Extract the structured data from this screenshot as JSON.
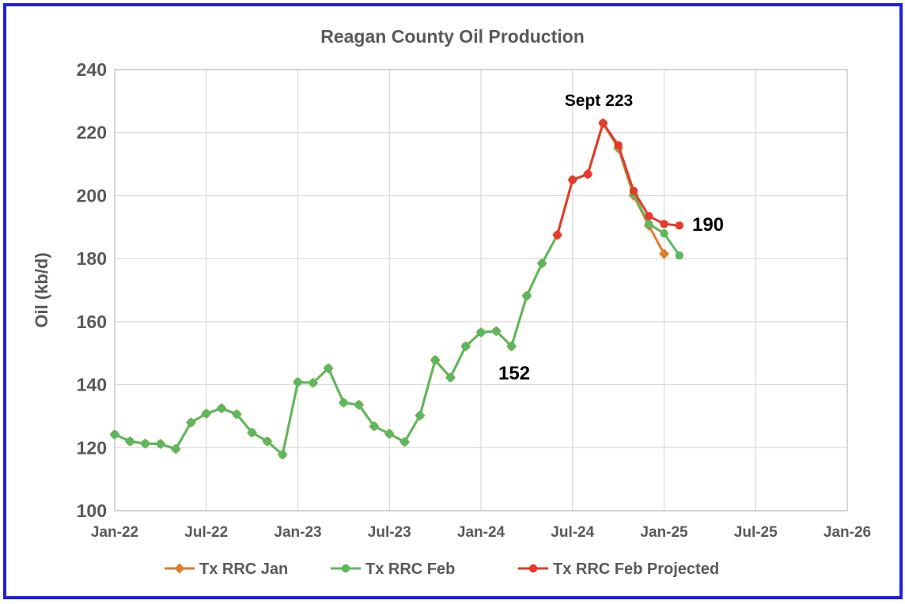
{
  "chart_data": {
    "type": "line",
    "title": "Reagan County Oil Production",
    "xlabel": "",
    "ylabel": "Oil (kb/d)",
    "ylim": [
      100,
      240
    ],
    "yticks": [
      "100",
      "120",
      "140",
      "160",
      "180",
      "200",
      "220",
      "240"
    ],
    "xticks": [
      "Jan-22",
      "Jul-22",
      "Jan-23",
      "Jul-23",
      "Jan-24",
      "Jul-24",
      "Jan-25",
      "Jul-25",
      "Jan-26"
    ],
    "xlim": [
      "2022-01",
      "2026-01"
    ],
    "grid": true,
    "legend_position": "bottom",
    "series": [
      {
        "name": "Tx RRC Jan",
        "color": "#e07b28",
        "marker": "diamond",
        "x": [
          "2022-01",
          "2022-02",
          "2022-03",
          "2022-04",
          "2022-05",
          "2022-06",
          "2022-07",
          "2022-08",
          "2022-09",
          "2022-10",
          "2022-11",
          "2022-12",
          "2023-01",
          "2023-02",
          "2023-03",
          "2023-04",
          "2023-05",
          "2023-06",
          "2023-07",
          "2023-08",
          "2023-09",
          "2023-10",
          "2023-11",
          "2023-12",
          "2024-01",
          "2024-02",
          "2024-03",
          "2024-04",
          "2024-05",
          "2024-06",
          "2024-07",
          "2024-08",
          "2024-09",
          "2024-10",
          "2024-11",
          "2024-12",
          "2025-01"
        ],
        "values": [
          124.2,
          122.0,
          121.3,
          121.2,
          119.6,
          128.0,
          130.8,
          132.5,
          130.6,
          124.8,
          122.0,
          117.8,
          140.8,
          140.6,
          145.2,
          134.3,
          133.6,
          126.8,
          124.4,
          121.8,
          130.2,
          147.8,
          142.3,
          152.2,
          156.6,
          157.0,
          152.2,
          168.2,
          178.5,
          187.5,
          205.0,
          206.8,
          223.0,
          215.0,
          200.0,
          190.5,
          181.5
        ]
      },
      {
        "name": "Tx RRC Feb",
        "color": "#5cb85c",
        "marker": "circle",
        "x": [
          "2022-01",
          "2022-02",
          "2022-03",
          "2022-04",
          "2022-05",
          "2022-06",
          "2022-07",
          "2022-08",
          "2022-09",
          "2022-10",
          "2022-11",
          "2022-12",
          "2023-01",
          "2023-02",
          "2023-03",
          "2023-04",
          "2023-05",
          "2023-06",
          "2023-07",
          "2023-08",
          "2023-09",
          "2023-10",
          "2023-11",
          "2023-12",
          "2024-01",
          "2024-02",
          "2024-03",
          "2024-04",
          "2024-05",
          "2024-06",
          "2024-07",
          "2024-08",
          "2024-09",
          "2024-10",
          "2024-11",
          "2024-12",
          "2025-01",
          "2025-02"
        ],
        "values": [
          124.2,
          122.0,
          121.3,
          121.2,
          119.6,
          128.0,
          130.8,
          132.5,
          130.6,
          124.8,
          122.0,
          117.8,
          140.8,
          140.6,
          145.2,
          134.3,
          133.6,
          126.8,
          124.4,
          121.8,
          130.2,
          147.8,
          142.3,
          152.2,
          156.6,
          157.0,
          152.2,
          168.2,
          178.5,
          187.5,
          205.0,
          206.8,
          223.0,
          215.5,
          200.5,
          191.0,
          188.0,
          181.0
        ]
      },
      {
        "name": "Tx RRC Feb Projected",
        "color": "#e8392a",
        "marker": "circle",
        "x": [
          "2024-06",
          "2024-07",
          "2024-08",
          "2024-09",
          "2024-10",
          "2024-11",
          "2024-12",
          "2025-01",
          "2025-02"
        ],
        "values": [
          187.5,
          205.0,
          206.8,
          223.0,
          216.0,
          201.5,
          193.5,
          191.0,
          190.5
        ]
      }
    ],
    "annotations": [
      {
        "text": "Sept 223"
      },
      {
        "text": "152"
      },
      {
        "text": "190"
      }
    ]
  }
}
